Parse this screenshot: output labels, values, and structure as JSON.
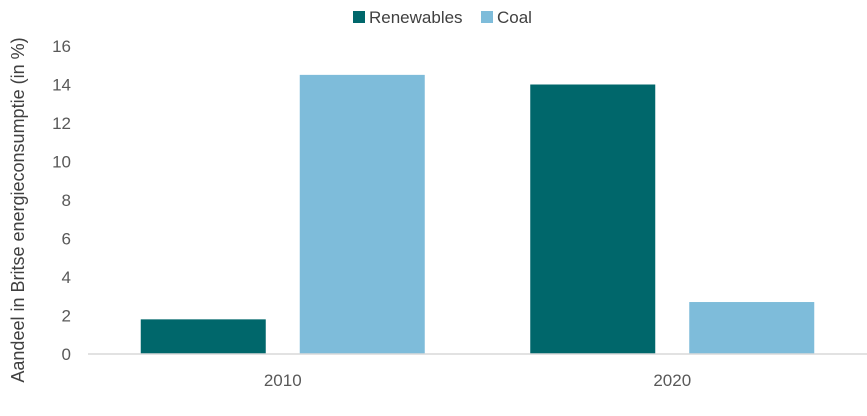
{
  "chart_data": {
    "type": "bar",
    "categories": [
      "2010",
      "2020"
    ],
    "series": [
      {
        "name": "Renewables",
        "values": [
          1.8,
          14.0
        ],
        "color": "#00676B"
      },
      {
        "name": "Coal",
        "values": [
          14.5,
          2.7
        ],
        "color": "#7EBCDA"
      }
    ],
    "title": "",
    "xlabel": "",
    "ylabel": "Aandeel in Britse energieconsumptie (in %)",
    "ylim": [
      0,
      16
    ],
    "yticks": [
      0,
      2,
      4,
      6,
      8,
      10,
      12,
      14,
      16
    ],
    "grid": false,
    "legend_position": "top-center"
  }
}
